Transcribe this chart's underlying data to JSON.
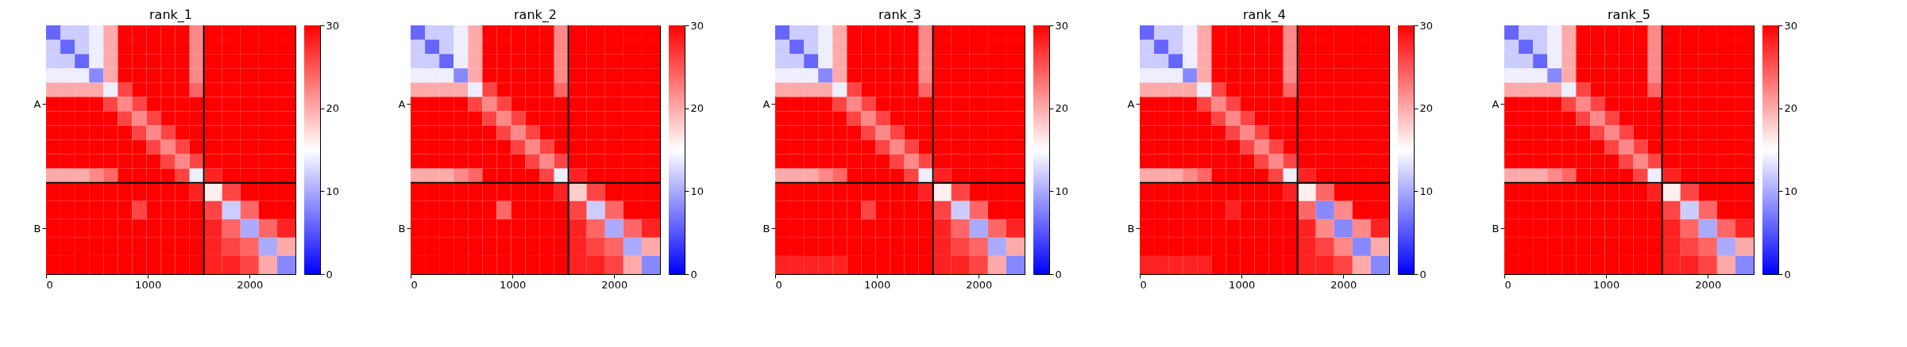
{
  "chart_data": [
    {
      "type": "heatmap",
      "title": "rank_1",
      "x": [
        70.5,
        211.5,
        352.5,
        493.5,
        634.5,
        775.5,
        916.5,
        1057.5,
        1198.5,
        1339.5,
        1480.5,
        1640,
        1820,
        2000,
        2180,
        2360
      ],
      "y_categories": [
        null,
        null,
        null,
        null,
        null,
        "A",
        null,
        null,
        null,
        null,
        null,
        null,
        null,
        "B",
        null,
        null
      ],
      "xlim": [
        0,
        2450
      ],
      "xticks": [
        0,
        1000,
        2000
      ],
      "clim": [
        0,
        30
      ],
      "cticks": [
        0,
        10,
        20,
        30
      ],
      "colors": [
        "#0000ff",
        "#ffffff",
        "#ff0000"
      ],
      "ref_lines": [
        {
          "axis": "x",
          "value": 1550,
          "color": "#000000"
        }
      ],
      "cells": [
        [
          6,
          12,
          12,
          14,
          20,
          30,
          30,
          30,
          30,
          30,
          22,
          30,
          30,
          30,
          30,
          30
        ],
        [
          12,
          6,
          12,
          14,
          20,
          30,
          30,
          30,
          30,
          30,
          22,
          30,
          30,
          30,
          30,
          30
        ],
        [
          12,
          12,
          6,
          14,
          20,
          30,
          30,
          30,
          30,
          30,
          22,
          30,
          30,
          30,
          30,
          30
        ],
        [
          14,
          14,
          14,
          8,
          20,
          30,
          30,
          30,
          30,
          30,
          22,
          30,
          30,
          30,
          30,
          30
        ],
        [
          20,
          20,
          20,
          20,
          14,
          26,
          30,
          30,
          30,
          30,
          24,
          30,
          30,
          30,
          30,
          30
        ],
        [
          30,
          30,
          30,
          30,
          26,
          22,
          26,
          30,
          30,
          30,
          30,
          30,
          30,
          30,
          30,
          30
        ],
        [
          30,
          30,
          30,
          30,
          30,
          26,
          22,
          26,
          30,
          30,
          30,
          30,
          30,
          30,
          30,
          30
        ],
        [
          30,
          30,
          30,
          30,
          30,
          30,
          26,
          22,
          26,
          30,
          30,
          30,
          30,
          30,
          30,
          30
        ],
        [
          30,
          30,
          30,
          30,
          30,
          30,
          30,
          26,
          22,
          26,
          30,
          30,
          30,
          30,
          30,
          30
        ],
        [
          30,
          30,
          30,
          30,
          30,
          30,
          30,
          30,
          26,
          22,
          26,
          30,
          30,
          30,
          30,
          30
        ],
        [
          20,
          20,
          20,
          22,
          24,
          30,
          30,
          30,
          30,
          26,
          14,
          28,
          30,
          30,
          30,
          30
        ],
        [
          30,
          30,
          30,
          30,
          30,
          30,
          30,
          30,
          30,
          30,
          28,
          16,
          26,
          30,
          30,
          30
        ],
        [
          30,
          30,
          30,
          30,
          30,
          30,
          26,
          30,
          30,
          30,
          30,
          26,
          12,
          24,
          30,
          30
        ],
        [
          30,
          30,
          30,
          30,
          30,
          30,
          30,
          30,
          30,
          30,
          30,
          28,
          24,
          10,
          24,
          28
        ],
        [
          30,
          30,
          30,
          30,
          30,
          30,
          30,
          30,
          30,
          30,
          30,
          28,
          26,
          24,
          10,
          20
        ],
        [
          30,
          30,
          30,
          30,
          30,
          30,
          30,
          30,
          30,
          30,
          30,
          28,
          28,
          26,
          20,
          8
        ]
      ]
    },
    {
      "type": "heatmap",
      "title": "rank_2",
      "x": [
        70.5,
        211.5,
        352.5,
        493.5,
        634.5,
        775.5,
        916.5,
        1057.5,
        1198.5,
        1339.5,
        1480.5,
        1640,
        1820,
        2000,
        2180,
        2360
      ],
      "y_categories": [
        null,
        null,
        null,
        null,
        null,
        "A",
        null,
        null,
        null,
        null,
        null,
        null,
        null,
        "B",
        null,
        null
      ],
      "xlim": [
        0,
        2450
      ],
      "xticks": [
        0,
        1000,
        2000
      ],
      "clim": [
        0,
        30
      ],
      "cticks": [
        0,
        10,
        20,
        30
      ],
      "colors": [
        "#0000ff",
        "#ffffff",
        "#ff0000"
      ],
      "ref_lines": [
        {
          "axis": "x",
          "value": 1550,
          "color": "#000000"
        }
      ],
      "cells": [
        [
          6,
          12,
          12,
          14,
          20,
          30,
          30,
          30,
          30,
          30,
          22,
          30,
          30,
          30,
          30,
          30
        ],
        [
          12,
          6,
          12,
          14,
          20,
          30,
          30,
          30,
          30,
          30,
          22,
          30,
          30,
          30,
          30,
          30
        ],
        [
          12,
          12,
          6,
          14,
          20,
          30,
          30,
          30,
          30,
          30,
          22,
          30,
          30,
          30,
          30,
          30
        ],
        [
          14,
          14,
          14,
          8,
          20,
          30,
          30,
          30,
          30,
          30,
          22,
          30,
          30,
          30,
          30,
          30
        ],
        [
          20,
          20,
          20,
          20,
          14,
          26,
          30,
          30,
          30,
          30,
          24,
          30,
          30,
          30,
          30,
          30
        ],
        [
          30,
          30,
          30,
          30,
          26,
          22,
          26,
          30,
          30,
          30,
          30,
          30,
          30,
          30,
          30,
          30
        ],
        [
          30,
          30,
          30,
          30,
          30,
          26,
          22,
          26,
          30,
          30,
          30,
          30,
          30,
          30,
          30,
          30
        ],
        [
          30,
          30,
          30,
          30,
          30,
          30,
          26,
          22,
          26,
          30,
          30,
          30,
          30,
          30,
          30,
          30
        ],
        [
          30,
          30,
          30,
          30,
          30,
          30,
          30,
          26,
          22,
          26,
          30,
          30,
          30,
          30,
          30,
          30
        ],
        [
          30,
          30,
          30,
          30,
          30,
          30,
          30,
          30,
          26,
          22,
          26,
          30,
          30,
          30,
          30,
          30
        ],
        [
          20,
          20,
          20,
          22,
          24,
          30,
          30,
          30,
          30,
          26,
          14,
          28,
          30,
          30,
          30,
          30
        ],
        [
          30,
          30,
          30,
          30,
          30,
          30,
          30,
          30,
          30,
          30,
          28,
          18,
          26,
          30,
          30,
          30
        ],
        [
          30,
          30,
          30,
          30,
          30,
          30,
          24,
          30,
          30,
          30,
          30,
          26,
          12,
          24,
          30,
          30
        ],
        [
          30,
          30,
          30,
          30,
          30,
          30,
          30,
          30,
          30,
          30,
          30,
          28,
          24,
          10,
          24,
          28
        ],
        [
          30,
          30,
          30,
          30,
          30,
          30,
          30,
          30,
          30,
          30,
          30,
          28,
          26,
          24,
          10,
          20
        ],
        [
          30,
          30,
          30,
          30,
          30,
          30,
          30,
          30,
          30,
          30,
          30,
          28,
          28,
          26,
          20,
          8
        ]
      ]
    },
    {
      "type": "heatmap",
      "title": "rank_3",
      "x": [
        70.5,
        211.5,
        352.5,
        493.5,
        634.5,
        775.5,
        916.5,
        1057.5,
        1198.5,
        1339.5,
        1480.5,
        1640,
        1820,
        2000,
        2180,
        2360
      ],
      "y_categories": [
        null,
        null,
        null,
        null,
        null,
        "A",
        null,
        null,
        null,
        null,
        null,
        null,
        null,
        "B",
        null,
        null
      ],
      "xlim": [
        0,
        2450
      ],
      "xticks": [
        0,
        1000,
        2000
      ],
      "clim": [
        0,
        30
      ],
      "cticks": [
        0,
        10,
        20,
        30
      ],
      "colors": [
        "#0000ff",
        "#ffffff",
        "#ff0000"
      ],
      "ref_lines": [
        {
          "axis": "x",
          "value": 1550,
          "color": "#000000"
        }
      ],
      "cells": [
        [
          6,
          12,
          12,
          14,
          20,
          30,
          30,
          30,
          30,
          30,
          22,
          30,
          30,
          30,
          30,
          30
        ],
        [
          12,
          6,
          12,
          14,
          20,
          30,
          30,
          30,
          30,
          30,
          22,
          30,
          30,
          30,
          30,
          30
        ],
        [
          12,
          12,
          6,
          14,
          20,
          30,
          30,
          30,
          30,
          30,
          22,
          30,
          30,
          30,
          30,
          30
        ],
        [
          14,
          14,
          14,
          8,
          20,
          30,
          30,
          30,
          30,
          30,
          22,
          30,
          30,
          30,
          30,
          30
        ],
        [
          20,
          20,
          20,
          20,
          14,
          26,
          30,
          30,
          30,
          30,
          24,
          30,
          30,
          30,
          30,
          30
        ],
        [
          30,
          30,
          30,
          30,
          26,
          22,
          26,
          30,
          30,
          30,
          30,
          30,
          30,
          30,
          30,
          30
        ],
        [
          30,
          30,
          30,
          30,
          30,
          26,
          22,
          26,
          30,
          30,
          30,
          30,
          30,
          30,
          30,
          30
        ],
        [
          30,
          30,
          30,
          30,
          30,
          30,
          26,
          22,
          26,
          30,
          30,
          30,
          30,
          30,
          30,
          30
        ],
        [
          30,
          30,
          30,
          30,
          30,
          30,
          30,
          26,
          22,
          26,
          30,
          30,
          30,
          30,
          30,
          30
        ],
        [
          30,
          30,
          30,
          30,
          30,
          30,
          30,
          30,
          26,
          22,
          26,
          30,
          30,
          30,
          30,
          30
        ],
        [
          20,
          20,
          20,
          22,
          24,
          30,
          30,
          30,
          30,
          26,
          14,
          28,
          30,
          30,
          30,
          30
        ],
        [
          30,
          30,
          30,
          30,
          30,
          30,
          30,
          30,
          30,
          30,
          28,
          16,
          26,
          30,
          30,
          30
        ],
        [
          30,
          30,
          30,
          30,
          30,
          30,
          26,
          30,
          30,
          30,
          30,
          26,
          12,
          24,
          30,
          30
        ],
        [
          30,
          30,
          30,
          30,
          30,
          30,
          30,
          30,
          30,
          30,
          30,
          28,
          24,
          10,
          24,
          28
        ],
        [
          30,
          30,
          30,
          30,
          30,
          30,
          30,
          30,
          30,
          30,
          30,
          28,
          26,
          24,
          10,
          20
        ],
        [
          28,
          28,
          28,
          28,
          28,
          30,
          30,
          30,
          30,
          30,
          30,
          28,
          28,
          26,
          20,
          8
        ]
      ]
    },
    {
      "type": "heatmap",
      "title": "rank_4",
      "x": [
        70.5,
        211.5,
        352.5,
        493.5,
        634.5,
        775.5,
        916.5,
        1057.5,
        1198.5,
        1339.5,
        1480.5,
        1640,
        1820,
        2000,
        2180,
        2360
      ],
      "y_categories": [
        null,
        null,
        null,
        null,
        null,
        "A",
        null,
        null,
        null,
        null,
        null,
        null,
        null,
        "B",
        null,
        null
      ],
      "xlim": [
        0,
        2450
      ],
      "xticks": [
        0,
        1000,
        2000
      ],
      "clim": [
        0,
        30
      ],
      "cticks": [
        0,
        10,
        20,
        30
      ],
      "colors": [
        "#0000ff",
        "#ffffff",
        "#ff0000"
      ],
      "ref_lines": [
        {
          "axis": "x",
          "value": 1550,
          "color": "#000000"
        }
      ],
      "cells": [
        [
          6,
          12,
          12,
          14,
          20,
          30,
          30,
          30,
          30,
          30,
          22,
          30,
          30,
          30,
          30,
          30
        ],
        [
          12,
          6,
          12,
          14,
          20,
          30,
          30,
          30,
          30,
          30,
          22,
          30,
          30,
          30,
          30,
          30
        ],
        [
          12,
          12,
          6,
          14,
          20,
          30,
          30,
          30,
          30,
          30,
          22,
          30,
          30,
          30,
          30,
          30
        ],
        [
          14,
          14,
          14,
          8,
          20,
          30,
          30,
          30,
          30,
          30,
          22,
          30,
          30,
          30,
          30,
          30
        ],
        [
          20,
          20,
          20,
          20,
          14,
          26,
          30,
          30,
          30,
          30,
          24,
          30,
          30,
          30,
          30,
          30
        ],
        [
          30,
          30,
          30,
          30,
          26,
          22,
          26,
          30,
          30,
          30,
          30,
          30,
          30,
          30,
          30,
          30
        ],
        [
          30,
          30,
          30,
          30,
          30,
          26,
          22,
          26,
          30,
          30,
          30,
          30,
          30,
          30,
          30,
          30
        ],
        [
          30,
          30,
          30,
          30,
          30,
          30,
          26,
          22,
          26,
          30,
          30,
          30,
          30,
          30,
          30,
          30
        ],
        [
          30,
          30,
          30,
          30,
          30,
          30,
          30,
          26,
          22,
          26,
          30,
          30,
          30,
          30,
          30,
          30
        ],
        [
          30,
          30,
          30,
          30,
          30,
          30,
          30,
          30,
          26,
          22,
          26,
          30,
          30,
          30,
          30,
          30
        ],
        [
          20,
          20,
          20,
          22,
          24,
          30,
          30,
          30,
          30,
          26,
          14,
          28,
          30,
          30,
          30,
          30
        ],
        [
          30,
          30,
          30,
          30,
          30,
          30,
          30,
          30,
          30,
          30,
          28,
          16,
          24,
          30,
          30,
          30
        ],
        [
          30,
          30,
          30,
          30,
          30,
          30,
          28,
          30,
          30,
          30,
          30,
          24,
          8,
          22,
          30,
          30
        ],
        [
          30,
          30,
          30,
          30,
          30,
          30,
          30,
          30,
          30,
          30,
          30,
          28,
          22,
          8,
          22,
          28
        ],
        [
          30,
          30,
          30,
          30,
          30,
          30,
          30,
          30,
          30,
          30,
          30,
          28,
          26,
          22,
          8,
          20
        ],
        [
          28,
          28,
          28,
          28,
          28,
          30,
          30,
          30,
          30,
          30,
          30,
          28,
          28,
          26,
          20,
          8
        ]
      ]
    },
    {
      "type": "heatmap",
      "title": "rank_5",
      "x": [
        70.5,
        211.5,
        352.5,
        493.5,
        634.5,
        775.5,
        916.5,
        1057.5,
        1198.5,
        1339.5,
        1480.5,
        1640,
        1820,
        2000,
        2180,
        2360
      ],
      "y_categories": [
        null,
        null,
        null,
        null,
        null,
        "A",
        null,
        null,
        null,
        null,
        null,
        null,
        null,
        "B",
        null,
        null
      ],
      "xlim": [
        0,
        2450
      ],
      "xticks": [
        0,
        1000,
        2000
      ],
      "clim": [
        0,
        30
      ],
      "cticks": [
        0,
        10,
        20,
        30
      ],
      "colors": [
        "#0000ff",
        "#ffffff",
        "#ff0000"
      ],
      "ref_lines": [
        {
          "axis": "x",
          "value": 1550,
          "color": "#000000"
        }
      ],
      "cells": [
        [
          6,
          12,
          12,
          14,
          20,
          30,
          30,
          30,
          30,
          30,
          22,
          30,
          30,
          30,
          30,
          30
        ],
        [
          12,
          6,
          12,
          14,
          20,
          30,
          30,
          30,
          30,
          30,
          22,
          30,
          30,
          30,
          30,
          30
        ],
        [
          12,
          12,
          6,
          14,
          20,
          30,
          30,
          30,
          30,
          30,
          22,
          30,
          30,
          30,
          30,
          30
        ],
        [
          14,
          14,
          14,
          8,
          20,
          30,
          30,
          30,
          30,
          30,
          22,
          30,
          30,
          30,
          30,
          30
        ],
        [
          20,
          20,
          20,
          20,
          14,
          26,
          30,
          30,
          30,
          30,
          24,
          30,
          30,
          30,
          30,
          30
        ],
        [
          30,
          30,
          30,
          30,
          26,
          22,
          26,
          30,
          30,
          30,
          30,
          30,
          30,
          30,
          30,
          30
        ],
        [
          30,
          30,
          30,
          30,
          30,
          26,
          22,
          26,
          30,
          30,
          30,
          30,
          30,
          30,
          30,
          30
        ],
        [
          30,
          30,
          30,
          30,
          30,
          30,
          26,
          22,
          26,
          30,
          30,
          30,
          30,
          30,
          30,
          30
        ],
        [
          30,
          30,
          30,
          30,
          30,
          30,
          30,
          26,
          22,
          26,
          30,
          30,
          30,
          30,
          30,
          30
        ],
        [
          30,
          30,
          30,
          30,
          30,
          30,
          30,
          30,
          26,
          22,
          26,
          30,
          30,
          30,
          30,
          30
        ],
        [
          20,
          20,
          20,
          22,
          24,
          30,
          30,
          30,
          30,
          26,
          14,
          28,
          30,
          30,
          30,
          30
        ],
        [
          30,
          30,
          30,
          30,
          30,
          30,
          30,
          30,
          30,
          30,
          28,
          16,
          26,
          30,
          30,
          30
        ],
        [
          30,
          30,
          30,
          30,
          30,
          30,
          30,
          30,
          30,
          30,
          30,
          26,
          12,
          24,
          30,
          30
        ],
        [
          30,
          30,
          30,
          30,
          30,
          30,
          30,
          30,
          30,
          30,
          30,
          28,
          24,
          10,
          24,
          28
        ],
        [
          30,
          30,
          30,
          30,
          30,
          30,
          30,
          30,
          30,
          30,
          30,
          28,
          26,
          24,
          10,
          20
        ],
        [
          30,
          30,
          30,
          30,
          30,
          30,
          30,
          30,
          30,
          30,
          30,
          28,
          28,
          26,
          20,
          8
        ]
      ]
    }
  ]
}
